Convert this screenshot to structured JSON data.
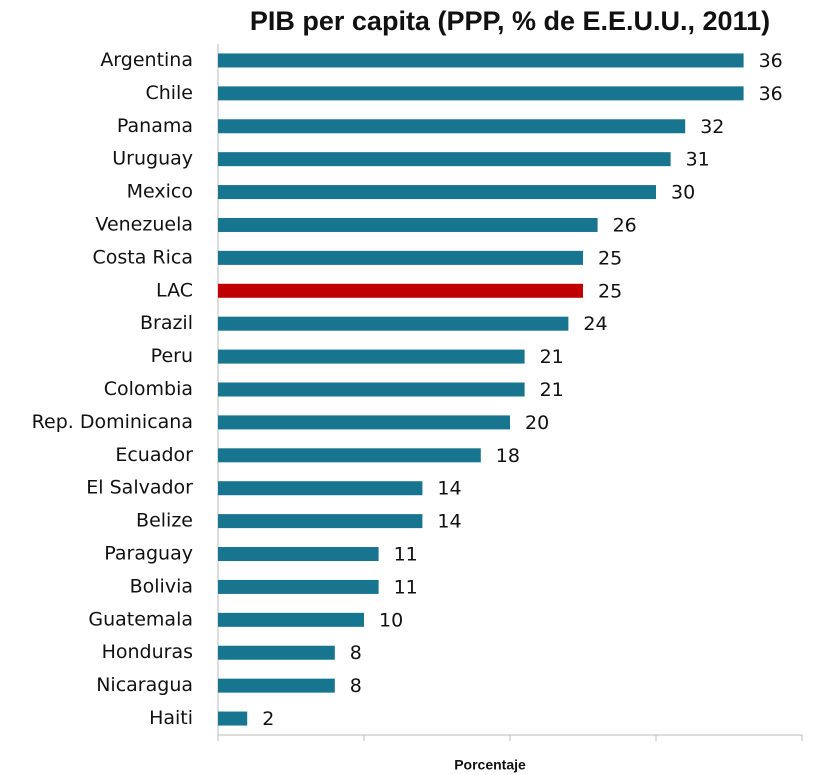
{
  "chart_data": {
    "type": "hbar",
    "title": "PIB per capita (PPP, % de E.E.U.U., 2011)",
    "xlabel": "Porcentaje",
    "categories": [
      "Argentina",
      "Chile",
      "Panama",
      "Uruguay",
      "Mexico",
      "Venezuela",
      "Costa Rica",
      "LAC",
      "Brazil",
      "Peru",
      "Colombia",
      "Rep. Dominicana",
      "Ecuador",
      "El Salvador",
      "Belize",
      "Paraguay",
      "Bolivia",
      "Guatemala",
      "Honduras",
      "Nicaragua",
      "Haiti"
    ],
    "values": [
      36,
      36,
      32,
      31,
      30,
      26,
      25,
      25,
      24,
      21,
      21,
      20,
      18,
      14,
      14,
      11,
      11,
      10,
      8,
      8,
      2
    ],
    "colors": [
      "#17758f",
      "#17758f",
      "#17758f",
      "#17758f",
      "#17758f",
      "#17758f",
      "#17758f",
      "#c00000",
      "#17758f",
      "#17758f",
      "#17758f",
      "#17758f",
      "#17758f",
      "#17758f",
      "#17758f",
      "#17758f",
      "#17758f",
      "#17758f",
      "#17758f",
      "#17758f",
      "#17758f"
    ],
    "xlim": [
      0,
      40
    ],
    "xticks": [
      0,
      10,
      20,
      30,
      40
    ]
  }
}
